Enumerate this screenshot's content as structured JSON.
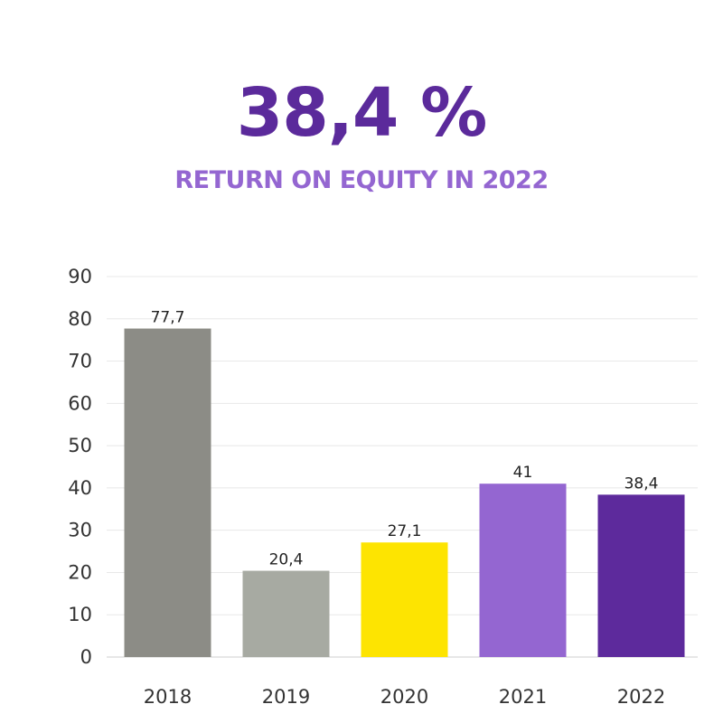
{
  "header": {
    "value": "38,4 %",
    "caption": "RETURN ON EQUITY IN 2022"
  },
  "chart_data": {
    "type": "bar",
    "categories": [
      "2018",
      "2019",
      "2020",
      "2021",
      "2022"
    ],
    "values": [
      77.7,
      20.4,
      27.1,
      41,
      38.4
    ],
    "value_labels": [
      "77,7",
      "20,4",
      "27,1",
      "41",
      "38,4"
    ],
    "bar_colors": [
      "#8c8c86",
      "#a7aaa2",
      "#fde401",
      "#9466d1",
      "#5d2a9c"
    ],
    "ylim": [
      0,
      90
    ],
    "yticks": [
      0,
      10,
      20,
      30,
      40,
      50,
      60,
      70,
      80,
      90
    ],
    "grid": true,
    "legend": "none",
    "xlabel": "",
    "ylabel": ""
  }
}
